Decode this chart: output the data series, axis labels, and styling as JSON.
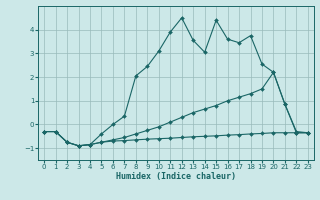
{
  "xlabel": "Humidex (Indice chaleur)",
  "bg_color": "#cce8e8",
  "grid_color": "#99bbbb",
  "line_color": "#1a6666",
  "xlim": [
    -0.5,
    23.5
  ],
  "ylim": [
    -1.5,
    5.0
  ],
  "yticks": [
    -1,
    0,
    1,
    2,
    3,
    4
  ],
  "xticks": [
    0,
    1,
    2,
    3,
    4,
    5,
    6,
    7,
    8,
    9,
    10,
    11,
    12,
    13,
    14,
    15,
    16,
    17,
    18,
    19,
    20,
    21,
    22,
    23
  ],
  "line1_x": [
    0,
    1,
    2,
    3,
    4,
    5,
    6,
    7,
    8,
    9,
    10,
    11,
    12,
    13,
    14,
    15,
    16,
    17,
    18,
    19,
    20,
    21,
    22,
    23
  ],
  "line1_y": [
    -0.3,
    -0.3,
    -0.75,
    -0.9,
    -0.85,
    -0.4,
    0.0,
    0.35,
    2.05,
    2.45,
    3.1,
    3.9,
    4.5,
    3.55,
    3.05,
    4.4,
    3.6,
    3.45,
    3.75,
    2.55,
    2.2,
    0.85,
    -0.3,
    -0.35
  ],
  "line2_x": [
    0,
    1,
    2,
    3,
    4,
    5,
    6,
    7,
    8,
    9,
    10,
    11,
    12,
    13,
    14,
    15,
    16,
    17,
    18,
    19,
    20,
    21,
    22,
    23
  ],
  "line2_y": [
    -0.3,
    -0.3,
    -0.75,
    -0.9,
    -0.85,
    -0.75,
    -0.65,
    -0.55,
    -0.4,
    -0.25,
    -0.1,
    0.1,
    0.3,
    0.5,
    0.65,
    0.8,
    1.0,
    1.15,
    1.3,
    1.5,
    2.2,
    0.85,
    -0.35,
    -0.35
  ],
  "line3_x": [
    0,
    1,
    2,
    3,
    4,
    5,
    6,
    7,
    8,
    9,
    10,
    11,
    12,
    13,
    14,
    15,
    16,
    17,
    18,
    19,
    20,
    21,
    22,
    23
  ],
  "line3_y": [
    -0.3,
    -0.3,
    -0.75,
    -0.9,
    -0.85,
    -0.75,
    -0.7,
    -0.68,
    -0.65,
    -0.62,
    -0.6,
    -0.58,
    -0.55,
    -0.52,
    -0.5,
    -0.48,
    -0.45,
    -0.43,
    -0.4,
    -0.38,
    -0.35,
    -0.35,
    -0.35,
    -0.35
  ]
}
